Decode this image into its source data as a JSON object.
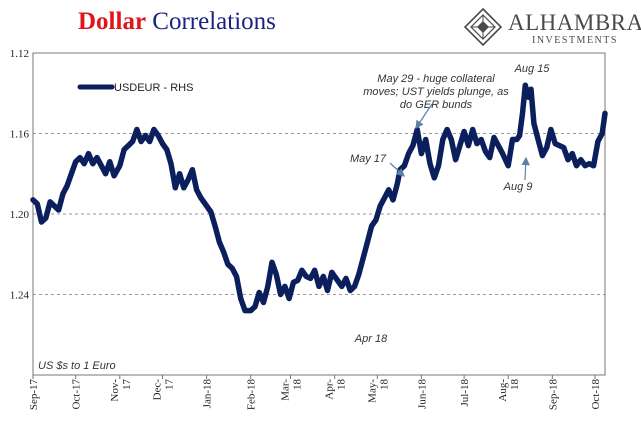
{
  "title": {
    "part1": "Dollar",
    "part2": "Correlations"
  },
  "logo": {
    "name": "ALHAMBRA",
    "sub": "INVESTMENTS",
    "mark_icon": "diamond-lattice-icon"
  },
  "chart_data": {
    "type": "line",
    "series": [
      {
        "name": "USDEUR - RHS",
        "color": "#0b1f5c",
        "values": [
          [
            "2017-09-01",
            1.193
          ],
          [
            "2017-09-04",
            1.195
          ],
          [
            "2017-09-07",
            1.204
          ],
          [
            "2017-09-10",
            1.202
          ],
          [
            "2017-09-13",
            1.194
          ],
          [
            "2017-09-16",
            1.196
          ],
          [
            "2017-09-19",
            1.198
          ],
          [
            "2017-09-22",
            1.19
          ],
          [
            "2017-09-25",
            1.186
          ],
          [
            "2017-09-28",
            1.18
          ],
          [
            "2017-10-01",
            1.174
          ],
          [
            "2017-10-04",
            1.172
          ],
          [
            "2017-10-07",
            1.175
          ],
          [
            "2017-10-10",
            1.17
          ],
          [
            "2017-10-13",
            1.175
          ],
          [
            "2017-10-16",
            1.172
          ],
          [
            "2017-10-19",
            1.176
          ],
          [
            "2017-10-22",
            1.18
          ],
          [
            "2017-10-25",
            1.174
          ],
          [
            "2017-10-28",
            1.181
          ],
          [
            "2017-11-01",
            1.176
          ],
          [
            "2017-11-04",
            1.168
          ],
          [
            "2017-11-07",
            1.166
          ],
          [
            "2017-11-10",
            1.164
          ],
          [
            "2017-11-13",
            1.158
          ],
          [
            "2017-11-16",
            1.164
          ],
          [
            "2017-11-19",
            1.161
          ],
          [
            "2017-11-22",
            1.164
          ],
          [
            "2017-11-25",
            1.158
          ],
          [
            "2017-11-28",
            1.161
          ],
          [
            "2017-12-01",
            1.165
          ],
          [
            "2017-12-04",
            1.168
          ],
          [
            "2017-12-07",
            1.175
          ],
          [
            "2017-12-10",
            1.187
          ],
          [
            "2017-12-13",
            1.18
          ],
          [
            "2017-12-16",
            1.187
          ],
          [
            "2017-12-19",
            1.183
          ],
          [
            "2017-12-22",
            1.178
          ],
          [
            "2017-12-25",
            1.188
          ],
          [
            "2017-12-28",
            1.192
          ],
          [
            "2018-01-01",
            1.196
          ],
          [
            "2018-01-04",
            1.199
          ],
          [
            "2018-01-07",
            1.206
          ],
          [
            "2018-01-10",
            1.214
          ],
          [
            "2018-01-13",
            1.219
          ],
          [
            "2018-01-16",
            1.225
          ],
          [
            "2018-01-19",
            1.227
          ],
          [
            "2018-01-22",
            1.231
          ],
          [
            "2018-01-25",
            1.242
          ],
          [
            "2018-01-28",
            1.248
          ],
          [
            "2018-02-01",
            1.248
          ],
          [
            "2018-02-04",
            1.246
          ],
          [
            "2018-02-07",
            1.239
          ],
          [
            "2018-02-10",
            1.244
          ],
          [
            "2018-02-13",
            1.236
          ],
          [
            "2018-02-16",
            1.224
          ],
          [
            "2018-02-19",
            1.23
          ],
          [
            "2018-02-22",
            1.24
          ],
          [
            "2018-02-25",
            1.236
          ],
          [
            "2018-02-28",
            1.242
          ],
          [
            "2018-03-03",
            1.234
          ],
          [
            "2018-03-06",
            1.233
          ],
          [
            "2018-03-09",
            1.228
          ],
          [
            "2018-03-12",
            1.231
          ],
          [
            "2018-03-15",
            1.232
          ],
          [
            "2018-03-18",
            1.228
          ],
          [
            "2018-03-21",
            1.236
          ],
          [
            "2018-03-24",
            1.231
          ],
          [
            "2018-03-27",
            1.238
          ],
          [
            "2018-03-30",
            1.229
          ],
          [
            "2018-04-03",
            1.233
          ],
          [
            "2018-04-06",
            1.236
          ],
          [
            "2018-04-09",
            1.232
          ],
          [
            "2018-04-12",
            1.238
          ],
          [
            "2018-04-15",
            1.236
          ],
          [
            "2018-04-18",
            1.23
          ],
          [
            "2018-04-21",
            1.222
          ],
          [
            "2018-04-24",
            1.214
          ],
          [
            "2018-04-27",
            1.206
          ],
          [
            "2018-04-30",
            1.203
          ],
          [
            "2018-05-03",
            1.196
          ],
          [
            "2018-05-06",
            1.192
          ],
          [
            "2018-05-09",
            1.188
          ],
          [
            "2018-05-12",
            1.193
          ],
          [
            "2018-05-15",
            1.185
          ],
          [
            "2018-05-17",
            1.178
          ],
          [
            "2018-05-20",
            1.176
          ],
          [
            "2018-05-23",
            1.17
          ],
          [
            "2018-05-26",
            1.166
          ],
          [
            "2018-05-29",
            1.158
          ],
          [
            "2018-06-01",
            1.17
          ],
          [
            "2018-06-04",
            1.163
          ],
          [
            "2018-06-07",
            1.175
          ],
          [
            "2018-06-10",
            1.182
          ],
          [
            "2018-06-13",
            1.176
          ],
          [
            "2018-06-16",
            1.163
          ],
          [
            "2018-06-19",
            1.158
          ],
          [
            "2018-06-22",
            1.163
          ],
          [
            "2018-06-25",
            1.173
          ],
          [
            "2018-06-28",
            1.166
          ],
          [
            "2018-07-01",
            1.159
          ],
          [
            "2018-07-04",
            1.166
          ],
          [
            "2018-07-07",
            1.158
          ],
          [
            "2018-07-10",
            1.165
          ],
          [
            "2018-07-13",
            1.163
          ],
          [
            "2018-07-16",
            1.169
          ],
          [
            "2018-07-19",
            1.172
          ],
          [
            "2018-07-22",
            1.162
          ],
          [
            "2018-07-25",
            1.166
          ],
          [
            "2018-07-28",
            1.17
          ],
          [
            "2018-08-01",
            1.176
          ],
          [
            "2018-08-04",
            1.163
          ],
          [
            "2018-08-07",
            1.163
          ],
          [
            "2018-08-09",
            1.161
          ],
          [
            "2018-08-11",
            1.15
          ],
          [
            "2018-08-13",
            1.136
          ],
          [
            "2018-08-15",
            1.142
          ],
          [
            "2018-08-17",
            1.138
          ],
          [
            "2018-08-19",
            1.155
          ],
          [
            "2018-08-22",
            1.163
          ],
          [
            "2018-08-25",
            1.171
          ],
          [
            "2018-08-28",
            1.167
          ],
          [
            "2018-08-31",
            1.158
          ],
          [
            "2018-09-03",
            1.165
          ],
          [
            "2018-09-06",
            1.166
          ],
          [
            "2018-09-09",
            1.167
          ],
          [
            "2018-09-12",
            1.173
          ],
          [
            "2018-09-15",
            1.17
          ],
          [
            "2018-09-18",
            1.176
          ],
          [
            "2018-09-21",
            1.173
          ],
          [
            "2018-09-24",
            1.176
          ],
          [
            "2018-09-27",
            1.175
          ],
          [
            "2018-09-30",
            1.176
          ],
          [
            "2018-10-03",
            1.164
          ],
          [
            "2018-10-06",
            1.16
          ],
          [
            "2018-10-08",
            1.15
          ]
        ]
      }
    ],
    "ylim": [
      1.28,
      1.12
    ],
    "y_ticks": [
      "1.12",
      "1.16",
      "1.20",
      "1.24"
    ],
    "y_tick_values": [
      1.12,
      1.16,
      1.2,
      1.24
    ],
    "x_ticks": [
      "Sep-17",
      "Oct-17",
      "Nov-\n17",
      "Dec-\n17",
      "Jan-18",
      "Feb-18",
      "Mar-\n18",
      "Apr-\n18",
      "May-\n18",
      "Jun-18",
      "Jul-18",
      "Aug-\n18",
      "Sep-18",
      "Oct-18"
    ],
    "x_tick_dates": [
      "2017-09-01",
      "2017-10-01",
      "2017-11-01",
      "2017-12-01",
      "2018-01-01",
      "2018-02-01",
      "2018-03-01",
      "2018-04-01",
      "2018-05-01",
      "2018-06-01",
      "2018-07-01",
      "2018-08-01",
      "2018-09-01",
      "2018-10-01"
    ],
    "xlim": [
      "2017-09-01",
      "2018-10-08"
    ],
    "y_axis_side": "left",
    "y_inverted": true,
    "grid": "horizontal dashed",
    "legend": {
      "entries": [
        "USDEUR - RHS"
      ],
      "placement": "top-left"
    },
    "units_note": "US $s to 1 Euro",
    "annotations": [
      {
        "text": "May 29 - huge collateral\nmoves; UST yields plunge, as\ndo GER bunds",
        "date": "2018-05-29",
        "value": 1.158,
        "arrow": true
      },
      {
        "text": "May 17",
        "date": "2018-05-17",
        "value": 1.178,
        "arrow": true
      },
      {
        "text": "Apr 18",
        "date": "2018-04-18",
        "value": 1.236,
        "arrow": false
      },
      {
        "text": "Aug 15",
        "date": "2018-08-15",
        "value": 1.136,
        "arrow": false
      },
      {
        "text": "Aug 9",
        "date": "2018-08-09",
        "value": 1.161,
        "arrow": true
      }
    ]
  }
}
